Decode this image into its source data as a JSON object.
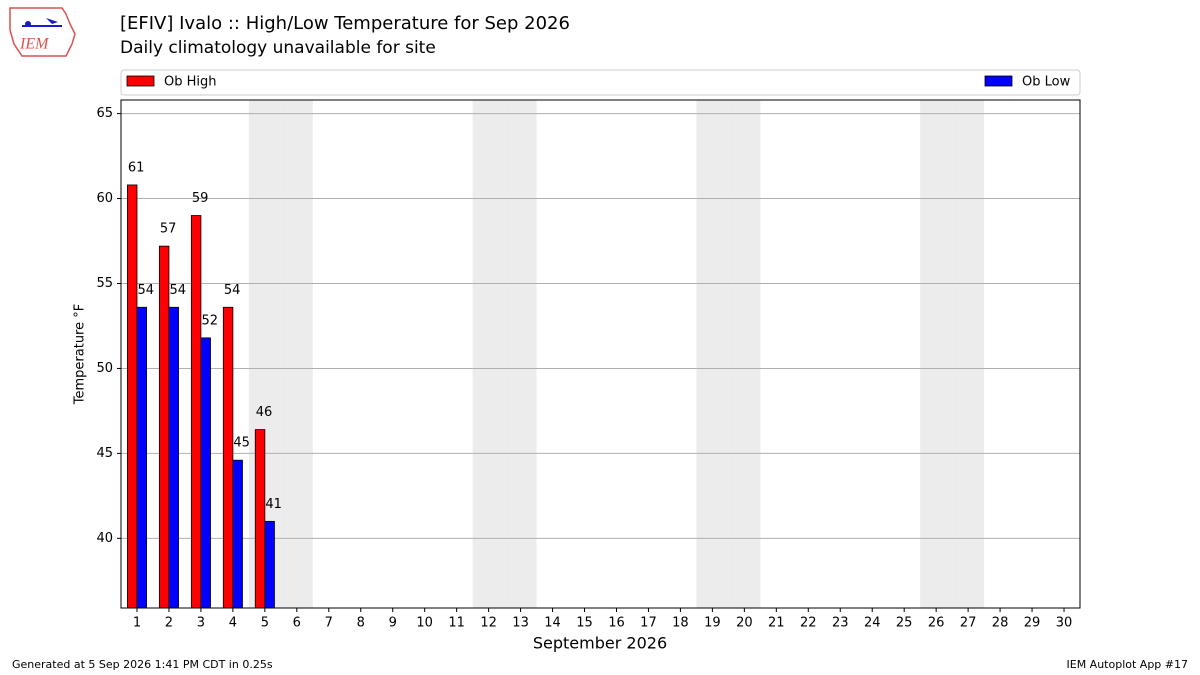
{
  "chart_data": {
    "type": "bar",
    "title": "[EFIV] Ivalo :: High/Low Temperature for Sep 2026",
    "subtitle": "Daily climatology unavailable for site",
    "x_label": "September 2026",
    "y_label": "Temperature °F",
    "x": [
      1,
      2,
      3,
      4,
      5
    ],
    "series": [
      {
        "name": "Ob High",
        "color": "#ff0000",
        "values": [
          60.8,
          57.2,
          59.0,
          53.6,
          46.4
        ],
        "value_labels": [
          "61",
          "57",
          "59",
          "54",
          "46"
        ]
      },
      {
        "name": "Ob Low",
        "color": "#0000ff",
        "values": [
          53.6,
          53.6,
          51.8,
          44.6,
          41.0
        ],
        "value_labels": [
          "54",
          "54",
          "52",
          "45",
          "41"
        ]
      }
    ],
    "xlim": [
      0.5,
      30.5
    ],
    "xticks": [
      1,
      2,
      3,
      4,
      5,
      6,
      7,
      8,
      9,
      10,
      11,
      12,
      13,
      14,
      15,
      16,
      17,
      18,
      19,
      20,
      21,
      22,
      23,
      24,
      25,
      26,
      27,
      28,
      29,
      30
    ],
    "ylim": [
      35.9,
      65.8
    ],
    "yticks": [
      40,
      45,
      50,
      55,
      60,
      65
    ],
    "grid": true,
    "shaded_days": [
      5,
      6,
      12,
      13,
      19,
      20,
      26,
      27
    ],
    "shade_color": "#ececec"
  },
  "logo": "IEM",
  "footer": {
    "left": "Generated at 5 Sep 2026 1:41 PM CDT in 0.25s",
    "right": "IEM Autoplot App #17"
  }
}
